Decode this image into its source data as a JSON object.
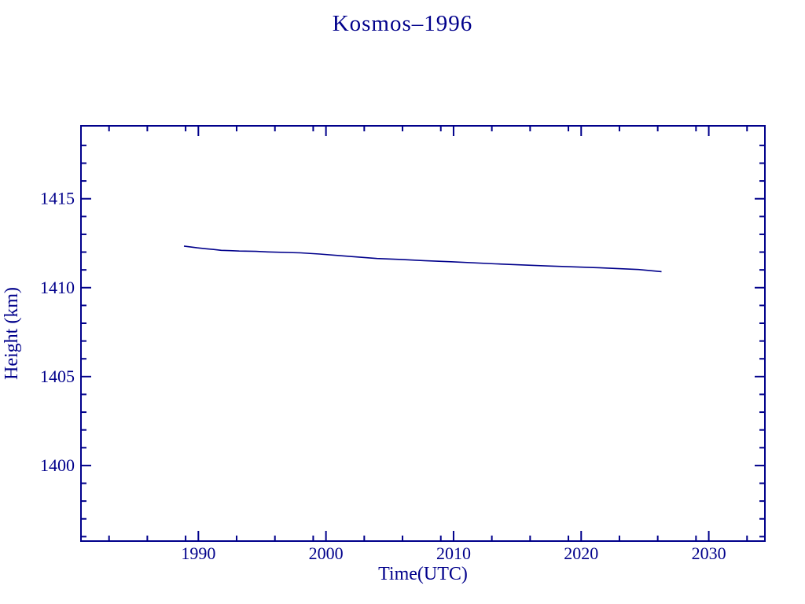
{
  "page": {
    "background_color": "#ffffff"
  },
  "chart_data": {
    "type": "line",
    "title": "Kosmos–1996",
    "xlabel": "Time(UTC)",
    "ylabel": "Height (km)",
    "color": "#00008B",
    "grid": false,
    "legend": "none",
    "xlim": [
      1980.8,
      2034.4
    ],
    "ylim": [
      1395.75,
      1419.1
    ],
    "xticks_major": [
      1990,
      2000,
      2010,
      2020,
      2030
    ],
    "xtick_labels": [
      "1990",
      "2000",
      "2010",
      "2020",
      "2030"
    ],
    "xticks_minor": [
      1983,
      1986,
      1989,
      1993,
      1996,
      1999,
      2003,
      2006,
      2009,
      2013,
      2016,
      2019,
      2023,
      2026,
      2029,
      2033
    ],
    "yticks_major": [
      1400,
      1405,
      1410,
      1415
    ],
    "ytick_labels": [
      "1400",
      "1405",
      "1410",
      "1415"
    ],
    "yticks_minor": [
      1396,
      1397,
      1398,
      1399,
      1401,
      1402,
      1403,
      1404,
      1406,
      1407,
      1408,
      1409,
      1411,
      1412,
      1413,
      1414,
      1416,
      1417,
      1418,
      1419
    ],
    "series": [
      {
        "name": "satellite-height",
        "color": "#00008B",
        "points": [
          [
            1988.87,
            1412.34
          ],
          [
            1989.9,
            1412.24
          ],
          [
            1990.6,
            1412.19
          ],
          [
            1991.2,
            1412.15
          ],
          [
            1991.8,
            1412.1
          ],
          [
            1992.5,
            1412.08
          ],
          [
            1993.2,
            1412.06
          ],
          [
            1994.5,
            1412.04
          ],
          [
            1995.4,
            1412.01
          ],
          [
            1998.0,
            1411.96
          ],
          [
            1999.5,
            1411.89
          ],
          [
            2001.1,
            1411.8
          ],
          [
            2002.6,
            1411.72
          ],
          [
            2004.0,
            1411.64
          ],
          [
            2005.7,
            1411.59
          ],
          [
            2007.7,
            1411.52
          ],
          [
            2009.8,
            1411.46
          ],
          [
            2013.3,
            1411.34
          ],
          [
            2017.4,
            1411.22
          ],
          [
            2021.4,
            1411.12
          ],
          [
            2024.5,
            1411.02
          ],
          [
            2026.3,
            1410.9
          ]
        ]
      }
    ]
  }
}
